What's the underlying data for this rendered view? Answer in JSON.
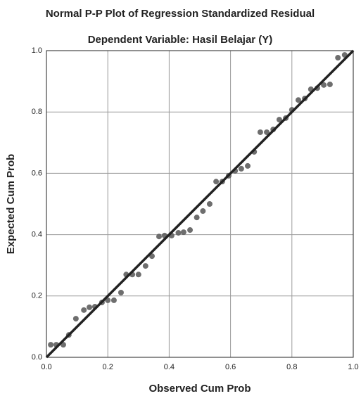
{
  "chart_data": {
    "type": "scatter",
    "title": "Normal P-P Plot of Regression Standardized Residual",
    "subtitle": "Dependent Variable: Hasil Belajar (Y)",
    "x_label": "Observed Cum Prob",
    "y_label": "Expected Cum Prob",
    "color": "#5e5e5e",
    "grid": true,
    "xlim": [
      0,
      1
    ],
    "ylim": [
      0,
      1
    ],
    "xticks": [
      {
        "value": 0,
        "label": "0.0"
      },
      {
        "value": 0.2,
        "label": "0.2"
      },
      {
        "value": 0.4,
        "label": "0.4"
      },
      {
        "value": 0.6,
        "label": "0.6"
      },
      {
        "value": 0.8,
        "label": "0.8"
      },
      {
        "value": 1,
        "label": "1.0"
      }
    ],
    "yticks": [
      {
        "value": 0,
        "label": "0.0"
      },
      {
        "value": 0.2,
        "label": "0.2"
      },
      {
        "value": 0.4,
        "label": "0.4"
      },
      {
        "value": 0.6,
        "label": "0.6"
      },
      {
        "value": 0.8,
        "label": "0.8"
      },
      {
        "value": 1,
        "label": "1.0"
      }
    ],
    "reference_line": {
      "x": [
        0,
        1
      ],
      "y": [
        0,
        1
      ],
      "color": "#222222"
    },
    "x": [
      0.014,
      0.032,
      0.055,
      0.073,
      0.096,
      0.122,
      0.14,
      0.158,
      0.181,
      0.2,
      0.22,
      0.243,
      0.26,
      0.28,
      0.3,
      0.323,
      0.344,
      0.367,
      0.385,
      0.408,
      0.43,
      0.447,
      0.468,
      0.49,
      0.51,
      0.532,
      0.553,
      0.573,
      0.594,
      0.615,
      0.635,
      0.656,
      0.677,
      0.697,
      0.718,
      0.739,
      0.759,
      0.78,
      0.8,
      0.821,
      0.842,
      0.862,
      0.883,
      0.904,
      0.924,
      0.95,
      0.972
    ],
    "y": [
      0.041,
      0.041,
      0.041,
      0.073,
      0.126,
      0.154,
      0.163,
      0.165,
      0.179,
      0.186,
      0.186,
      0.211,
      0.27,
      0.27,
      0.27,
      0.298,
      0.33,
      0.394,
      0.397,
      0.397,
      0.406,
      0.408,
      0.415,
      0.456,
      0.477,
      0.5,
      0.573,
      0.573,
      0.592,
      0.608,
      0.615,
      0.624,
      0.67,
      0.734,
      0.734,
      0.743,
      0.775,
      0.78,
      0.807,
      0.839,
      0.844,
      0.874,
      0.878,
      0.888,
      0.89,
      0.977,
      0.986
    ]
  }
}
